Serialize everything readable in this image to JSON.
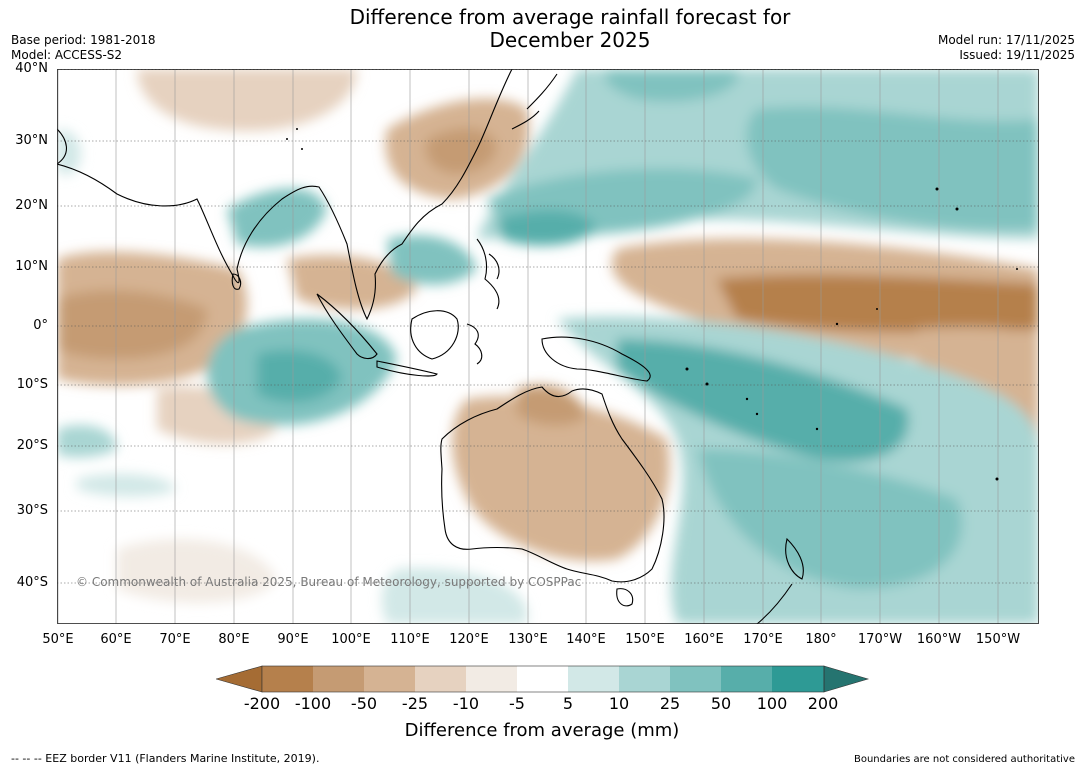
{
  "title_line1": "Difference from average rainfall forecast for",
  "title_line2": "December 2025",
  "base_period": "Base period: 1981-2018",
  "model": "Model: ACCESS-S2",
  "model_run": "Model run: 17/11/2025",
  "issued": "Issued: 19/11/2025",
  "lat_labels": [
    "40°N",
    "30°N",
    "20°N",
    "10°N",
    "0°",
    "10°S",
    "20°S",
    "30°S",
    "40°S"
  ],
  "lon_labels": [
    "50°E",
    "60°E",
    "70°E",
    "80°E",
    "90°E",
    "100°E",
    "110°E",
    "120°E",
    "130°E",
    "140°E",
    "150°E",
    "160°E",
    "170°E",
    "180°",
    "170°W",
    "160°W",
    "150°W"
  ],
  "colorbar": {
    "title": "Difference from average (mm)",
    "labels": [
      "-200",
      "-100",
      "-50",
      "-25",
      "-10",
      "-5",
      "5",
      "10",
      "25",
      "50",
      "100",
      "200"
    ],
    "colors": [
      "#a56c34",
      "#b5804c",
      "#c59b73",
      "#d5b393",
      "#e6d2c0",
      "#f2ebe4",
      "#ffffff",
      "#d2e8e7",
      "#a9d5d3",
      "#80c2bf",
      "#57aeaa",
      "#2e9a95",
      "#257470"
    ]
  },
  "copyright": "© Commonwealth of Australia 2025, Bureau of Meteorology, supported by COSPPac",
  "eez_note": "--  --  -- EEZ border V11 (Flanders Marine Institute, 2019).",
  "boundary_note": "Boundaries are not considered authoritative"
}
